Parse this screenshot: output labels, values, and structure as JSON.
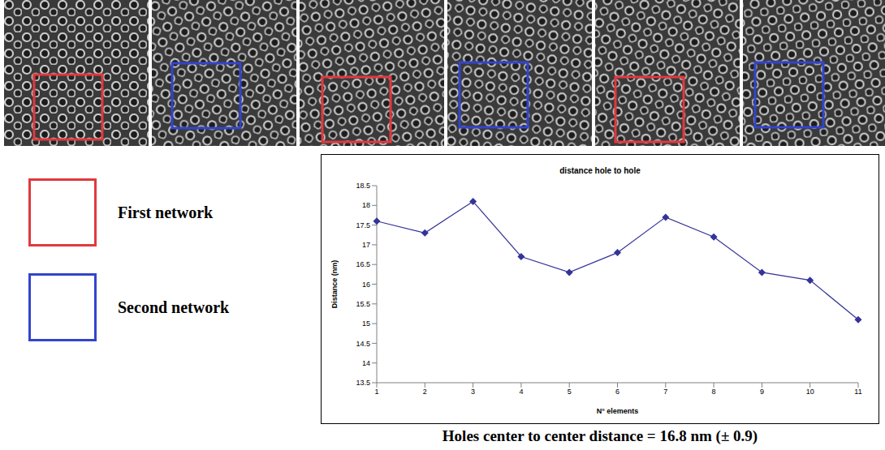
{
  "chart_data": {
    "type": "line",
    "title": "distance hole to hole",
    "x_label": "N° elements",
    "y_label": "Distance (nm)",
    "categories": [
      "1",
      "2",
      "3",
      "4",
      "5",
      "6",
      "7",
      "8",
      "9",
      "10",
      "11"
    ],
    "values": [
      17.6,
      17.3,
      18.1,
      16.7,
      16.3,
      16.8,
      17.7,
      17.2,
      16.3,
      16.1,
      15.1
    ],
    "color": "#333399",
    "marker": "diamond",
    "line_style": "solid",
    "ylim": [
      13.5,
      18.5
    ],
    "yticks": [
      13.5,
      14,
      14.5,
      15,
      15.5,
      16,
      16.5,
      17,
      17.5,
      18,
      18.5
    ],
    "grid": false,
    "caption": "Holes center to center distance = 16.8 nm (± 0.9)"
  },
  "image_panels": {
    "box_colors": [
      "#e0393e",
      "#3344cc",
      "#e0393e",
      "#3344cc",
      "#e0393e",
      "#3344cc"
    ]
  },
  "image_legend": [
    {
      "label": "First network",
      "color": "#e0393e"
    },
    {
      "label": "Second network",
      "color": "#3344cc"
    }
  ]
}
